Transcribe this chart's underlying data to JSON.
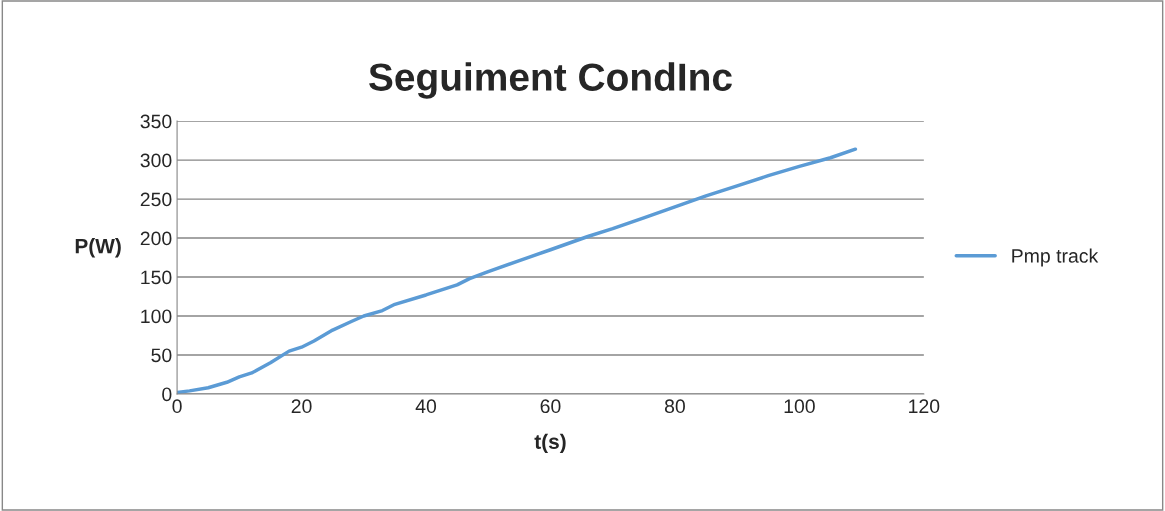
{
  "chart_data": {
    "type": "line",
    "title": "Seguiment CondInc",
    "xlabel": "t(s)",
    "ylabel": "P(W)",
    "x": [
      0,
      2,
      5,
      8,
      10,
      12,
      15,
      18,
      20,
      22,
      25,
      28,
      30,
      33,
      35,
      40,
      45,
      47,
      50,
      55,
      60,
      66,
      70,
      75,
      80,
      85,
      90,
      95,
      100,
      105,
      109
    ],
    "series": [
      {
        "name": "Pmp track",
        "color": "#5b9bd5",
        "values": [
          2,
          4,
          8,
          15,
          22,
          27,
          40,
          55,
          60,
          68,
          82,
          93,
          100,
          107,
          115,
          127,
          140,
          148,
          157,
          171,
          185,
          202,
          212,
          226,
          240,
          254,
          267,
          280,
          292,
          303,
          314
        ]
      }
    ],
    "xlim": [
      0,
      120
    ],
    "xticks": [
      0,
      20,
      40,
      60,
      80,
      100,
      120
    ],
    "ylim": [
      0,
      350
    ],
    "yticks": [
      0,
      50,
      100,
      150,
      200,
      250,
      300,
      350
    ],
    "grid": "y",
    "legend": "right",
    "marker": "none",
    "line_style": "solid"
  }
}
